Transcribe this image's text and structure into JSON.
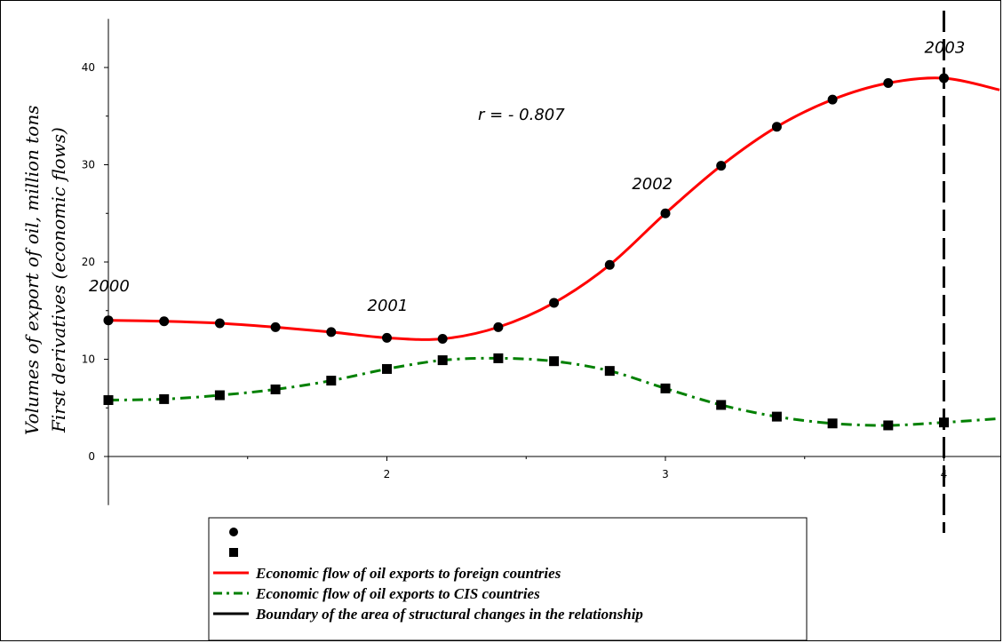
{
  "chart_data": {
    "type": "line",
    "ylabel_line1": "Volumes of export of oil, million tons",
    "ylabel_line2": "First derivatives (economic flows)",
    "annotation_r": "r = - 0.807",
    "year_annotations": [
      {
        "label": "2000",
        "x": 1.0,
        "y": 17
      },
      {
        "label": "2001",
        "x": 2.0,
        "y": 15
      },
      {
        "label": "2002",
        "x": 2.95,
        "y": 27.5
      },
      {
        "label": "2003",
        "x": 4.0,
        "y": 41.5
      }
    ],
    "xlim": [
      1.0,
      4.2
    ],
    "ylim": [
      -5,
      45
    ],
    "xticks": [
      2,
      3,
      4
    ],
    "yticks": [
      0,
      10,
      20,
      30,
      40
    ],
    "grid": false,
    "boundary_x": 4.0,
    "series": [
      {
        "name": "Economic flow of oil exports to foreign countries",
        "color": "#ff0000",
        "style": "solid",
        "marker": "circle",
        "x": [
          1.0,
          1.2,
          1.4,
          1.6,
          1.8,
          2.0,
          2.2,
          2.4,
          2.6,
          2.8,
          3.0,
          3.2,
          3.4,
          3.6,
          3.8,
          4.0
        ],
        "y": [
          14.0,
          13.9,
          13.7,
          13.3,
          12.8,
          12.2,
          12.1,
          13.3,
          15.8,
          19.7,
          25.0,
          29.9,
          33.9,
          36.7,
          38.4,
          38.9
        ],
        "curve_x": [
          1.0,
          1.2,
          1.4,
          1.6,
          1.8,
          2.0,
          2.2,
          2.4,
          2.6,
          2.8,
          3.0,
          3.2,
          3.4,
          3.6,
          3.8,
          4.0,
          4.2
        ],
        "curve_y": [
          14.0,
          13.9,
          13.7,
          13.3,
          12.8,
          12.2,
          12.1,
          13.3,
          15.8,
          19.7,
          25.0,
          29.9,
          33.9,
          36.7,
          38.4,
          38.9,
          37.7
        ]
      },
      {
        "name": "Economic flow of oil exports to CIS countries",
        "color": "#008000",
        "style": "dashdot",
        "marker": "square",
        "x": [
          1.0,
          1.2,
          1.4,
          1.6,
          1.8,
          2.0,
          2.2,
          2.4,
          2.6,
          2.8,
          3.0,
          3.2,
          3.4,
          3.6,
          3.8,
          4.0
        ],
        "y": [
          5.8,
          5.9,
          6.3,
          6.9,
          7.8,
          9.0,
          9.9,
          10.1,
          9.8,
          8.8,
          7.0,
          5.3,
          4.1,
          3.4,
          3.2,
          3.5
        ],
        "curve_x": [
          1.0,
          1.2,
          1.4,
          1.6,
          1.8,
          2.0,
          2.2,
          2.4,
          2.6,
          2.8,
          3.0,
          3.2,
          3.4,
          3.6,
          3.8,
          4.0,
          4.2
        ],
        "curve_y": [
          5.8,
          5.9,
          6.3,
          6.9,
          7.8,
          9.0,
          9.9,
          10.1,
          9.8,
          8.8,
          7.0,
          5.3,
          4.1,
          3.4,
          3.2,
          3.5,
          3.9
        ]
      }
    ],
    "legend": {
      "placement": "bottom",
      "entries": [
        {
          "symbol": "circle",
          "label": ""
        },
        {
          "symbol": "square",
          "label": ""
        },
        {
          "symbol": "line",
          "color": "#ff0000",
          "style": "solid",
          "label": "Economic flow of oil exports to foreign countries"
        },
        {
          "symbol": "line",
          "color": "#008000",
          "style": "dashdot",
          "label": "Economic flow of oil exports to CIS countries"
        },
        {
          "symbol": "line",
          "color": "#000000",
          "style": "solid",
          "label": "Boundary of the area of structural changes in the relationship"
        }
      ]
    }
  }
}
